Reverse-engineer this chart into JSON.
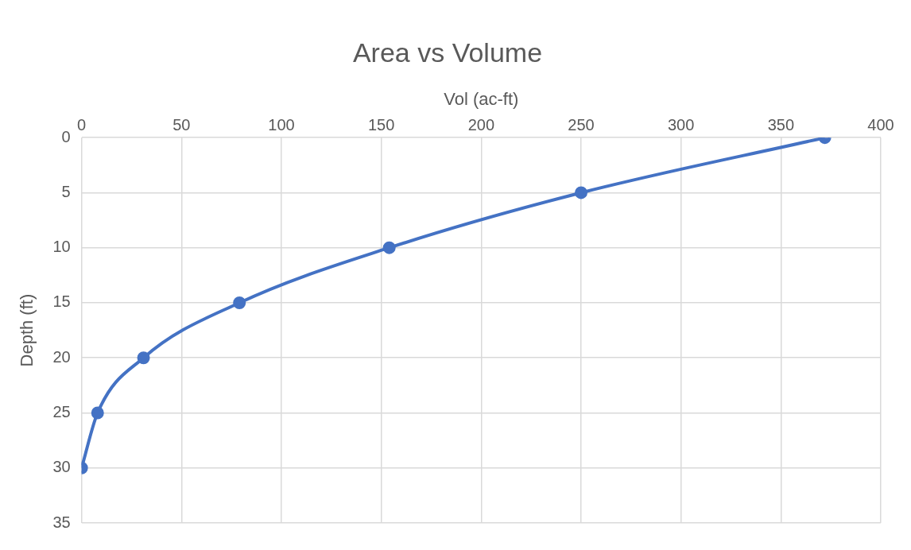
{
  "chart_data": {
    "type": "line",
    "title": "Area vs Volume",
    "xlabel": "Vol (ac-ft)",
    "ylabel": "Depth (ft)",
    "x": [
      0,
      8,
      31,
      79,
      154,
      250,
      372
    ],
    "series": [
      {
        "color": "#4472c4",
        "values": [
          30,
          25,
          20,
          15,
          10,
          5,
          0
        ]
      }
    ],
    "xlim": [
      0,
      400
    ],
    "xticks": [
      0,
      50,
      100,
      150,
      200,
      250,
      300,
      350,
      400
    ],
    "ylim": [
      35,
      0
    ],
    "yticks": [
      0,
      5,
      10,
      15,
      20,
      25,
      30,
      35
    ],
    "grid": true,
    "legend": false,
    "marker": "circle",
    "line_style": "solid"
  }
}
